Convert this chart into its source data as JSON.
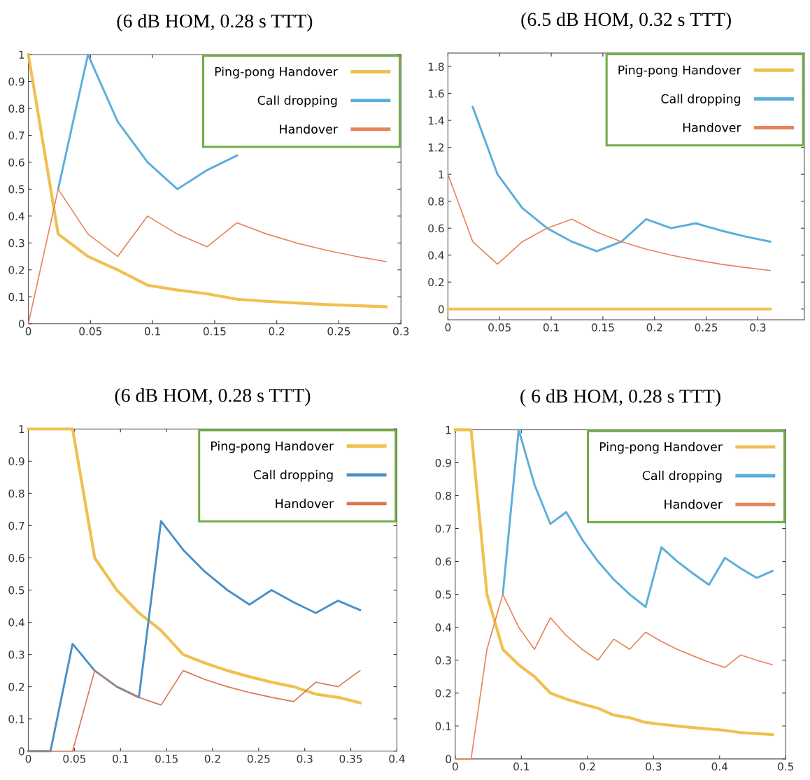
{
  "chart_data": [
    {
      "type": "line",
      "title": "(6 dB HOM, 0.28 s TTT)",
      "x": [
        0,
        0.024,
        0.048,
        0.072,
        0.096,
        0.12,
        0.144,
        0.168,
        0.192,
        0.216,
        0.24,
        0.264,
        0.288
      ],
      "xlim": [
        0,
        0.3
      ],
      "ylim": [
        0,
        1
      ],
      "xticks": [
        0,
        0.05,
        0.1,
        0.15,
        0.2,
        0.25,
        0.3
      ],
      "yticks": [
        0,
        0.1,
        0.2,
        0.3,
        0.4,
        0.5,
        0.6,
        0.7,
        0.8,
        0.9,
        1
      ],
      "grid": false,
      "legend": "top right",
      "marker": "none",
      "line_style": "solid",
      "series": [
        {
          "name": "Ping-pong Handover",
          "color": "#f0c050",
          "values": [
            1,
            0.333,
            0.25,
            0.2,
            0.143,
            0.125,
            0.111,
            0.091,
            0.083,
            0.077,
            0.071,
            0.067,
            0.063
          ]
        },
        {
          "name": "Call dropping",
          "color": "#5aaedc",
          "values": [
            null,
            0.5,
            1,
            0.75,
            0.6,
            0.5,
            0.571,
            0.625,
            null,
            null,
            null,
            null,
            null
          ]
        },
        {
          "name": "Handover",
          "color": "#e8845a",
          "values": [
            0,
            0.5,
            0.333,
            0.25,
            0.4,
            0.333,
            0.286,
            0.375,
            0.333,
            0.3,
            0.273,
            0.25,
            0.231
          ]
        }
      ]
    },
    {
      "type": "line",
      "title": "(6.5 dB HOM, 0.32 s TTT)",
      "x": [
        0,
        0.024,
        0.048,
        0.072,
        0.096,
        0.12,
        0.144,
        0.168,
        0.192,
        0.216,
        0.24,
        0.264,
        0.288,
        0.312
      ],
      "xlim": [
        0,
        0.345
      ],
      "ylim": [
        -0.08,
        1.9
      ],
      "xticks": [
        0,
        0.05,
        0.1,
        0.15,
        0.2,
        0.25,
        0.3
      ],
      "yticks": [
        0,
        0.2,
        0.4,
        0.6,
        0.8,
        1,
        1.2,
        1.4,
        1.6,
        1.8
      ],
      "grid": false,
      "legend": "top right",
      "marker": "none",
      "line_style": "solid",
      "series": [
        {
          "name": "Ping-pong Handover",
          "color": "#f0c050",
          "values": [
            0,
            0,
            0,
            0,
            0,
            0,
            0,
            0,
            0,
            0,
            0,
            0,
            0,
            0
          ]
        },
        {
          "name": "Call dropping",
          "color": "#5aaedc",
          "values": [
            null,
            1.5,
            1,
            0.75,
            0.6,
            0.5,
            0.429,
            0.5,
            0.667,
            0.6,
            0.636,
            0.583,
            0.538,
            0.5
          ]
        },
        {
          "name": "Handover",
          "color": "#e8845a",
          "values": [
            1,
            0.5,
            0.333,
            0.5,
            0.6,
            0.667,
            0.571,
            0.5,
            0.444,
            0.4,
            0.364,
            0.333,
            0.308,
            0.286
          ]
        }
      ]
    },
    {
      "type": "line",
      "title": "(6 dB HOM, 0.28 s TTT)",
      "x": [
        0,
        0.024,
        0.048,
        0.072,
        0.096,
        0.12,
        0.144,
        0.168,
        0.192,
        0.216,
        0.24,
        0.264,
        0.288,
        0.312,
        0.336,
        0.36
      ],
      "xlim": [
        0,
        0.4
      ],
      "ylim": [
        0,
        1
      ],
      "xticks": [
        0,
        0.05,
        0.1,
        0.15,
        0.2,
        0.25,
        0.3,
        0.35,
        0.4
      ],
      "yticks": [
        0,
        0.1,
        0.2,
        0.3,
        0.4,
        0.5,
        0.6,
        0.7,
        0.8,
        0.9,
        1
      ],
      "grid": false,
      "legend": "top right",
      "marker": "none",
      "line_style": "solid",
      "series": [
        {
          "name": "Ping-pong Handover",
          "color": "#f0c050",
          "values": [
            1,
            1,
            1,
            0.6,
            0.5,
            0.429,
            0.375,
            0.3,
            0.273,
            0.25,
            0.231,
            0.214,
            0.2,
            0.177,
            0.167,
            0.15
          ]
        },
        {
          "name": "Call dropping",
          "color": "#4a90c8",
          "values": [
            0,
            0,
            0.333,
            0.25,
            0.2,
            0.167,
            0.714,
            0.625,
            0.556,
            0.5,
            0.455,
            0.5,
            0.462,
            0.429,
            0.467,
            0.438
          ]
        },
        {
          "name": "Handover",
          "color": "#d87850",
          "values": [
            0,
            0,
            0,
            0.25,
            0.2,
            0.167,
            0.143,
            0.25,
            0.222,
            0.2,
            0.182,
            0.167,
            0.154,
            0.214,
            0.2,
            0.25
          ]
        }
      ]
    },
    {
      "type": "line",
      "title": "( 6 dB HOM, 0.28 s TTT)",
      "x": [
        0,
        0.024,
        0.048,
        0.072,
        0.096,
        0.12,
        0.144,
        0.168,
        0.192,
        0.216,
        0.24,
        0.264,
        0.288,
        0.312,
        0.336,
        0.36,
        0.384,
        0.408,
        0.432,
        0.456,
        0.48
      ],
      "xlim": [
        0,
        0.5
      ],
      "ylim": [
        0,
        1
      ],
      "xticks": [
        0,
        0.1,
        0.2,
        0.3,
        0.4,
        0.5
      ],
      "yticks": [
        0,
        0.1,
        0.2,
        0.3,
        0.4,
        0.5,
        0.6,
        0.7,
        0.8,
        0.9,
        1
      ],
      "grid": false,
      "legend": "top right",
      "marker": "none",
      "line_style": "solid",
      "series": [
        {
          "name": "Ping-pong Handover",
          "color": "#f0c050",
          "values": [
            1,
            1,
            0.5,
            0.333,
            0.286,
            0.25,
            0.2,
            0.182,
            0.167,
            0.154,
            0.133,
            0.125,
            0.111,
            0.105,
            0.1,
            0.095,
            0.091,
            0.087,
            0.08,
            0.077,
            0.074
          ]
        },
        {
          "name": "Call dropping",
          "color": "#5aaedc",
          "values": [
            null,
            null,
            null,
            0.5,
            1,
            0.833,
            0.714,
            0.75,
            0.667,
            0.6,
            0.545,
            0.5,
            0.462,
            0.643,
            0.6,
            0.563,
            0.529,
            0.611,
            0.579,
            0.55,
            0.571
          ]
        },
        {
          "name": "Handover",
          "color": "#e8845a",
          "values": [
            0,
            0,
            0.333,
            0.5,
            0.4,
            0.333,
            0.429,
            0.375,
            0.333,
            0.3,
            0.364,
            0.333,
            0.385,
            0.357,
            0.333,
            0.313,
            0.294,
            0.278,
            0.316,
            0.3,
            0.286
          ]
        }
      ]
    }
  ]
}
